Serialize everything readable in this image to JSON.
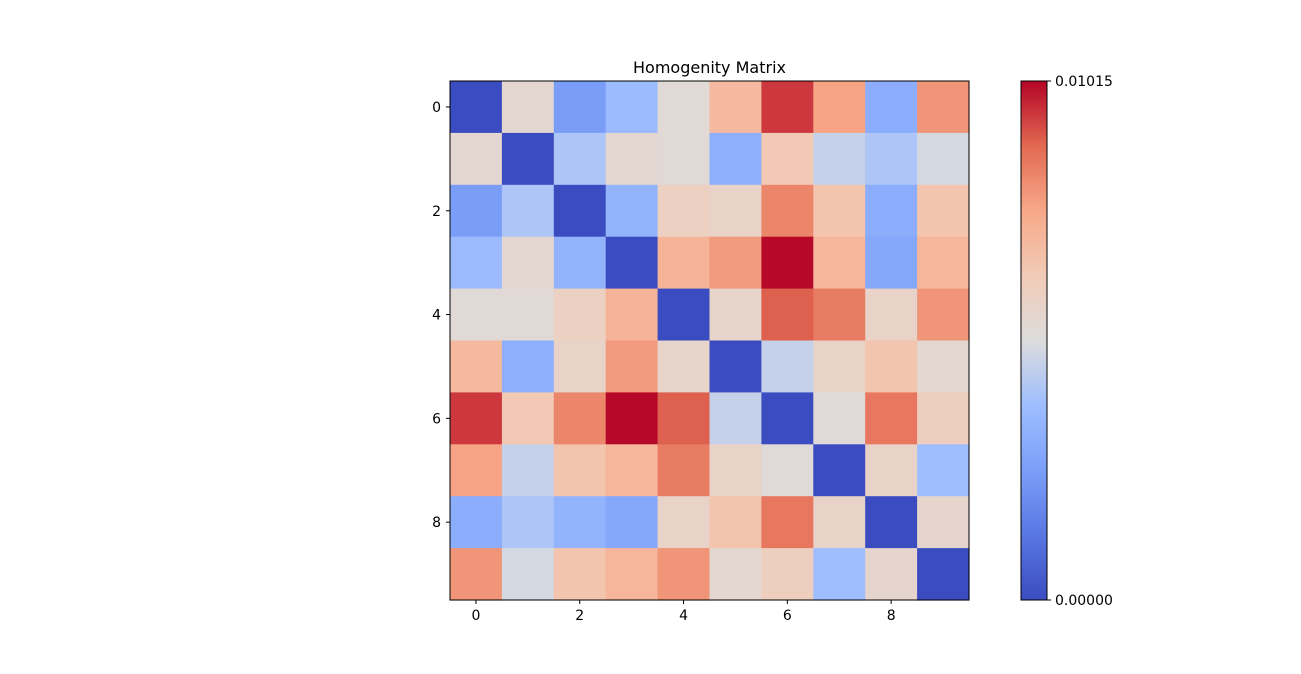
{
  "chart_data": {
    "type": "heatmap",
    "title": "Homogenity Matrix",
    "rows": 10,
    "cols": 10,
    "x_ticks": [
      "0",
      "2",
      "4",
      "6",
      "8"
    ],
    "y_ticks": [
      "0",
      "2",
      "4",
      "6",
      "8"
    ],
    "colormap": "coolwarm",
    "colorbar": {
      "min": 0.0,
      "max": 0.01015,
      "min_label": "0.00000",
      "max_label": "0.01015"
    },
    "values": [
      [
        0.0,
        0.0055,
        0.0025,
        0.0037,
        0.0053,
        0.007,
        0.0095,
        0.0077,
        0.0031,
        0.008
      ],
      [
        0.0055,
        0.0,
        0.0041,
        0.0055,
        0.0053,
        0.0032,
        0.0064,
        0.0046,
        0.0041,
        0.0049
      ],
      [
        0.0025,
        0.0041,
        0.0,
        0.0034,
        0.006,
        0.0058,
        0.0083,
        0.0066,
        0.0031,
        0.0066
      ],
      [
        0.0037,
        0.0055,
        0.0034,
        0.0,
        0.0072,
        0.0079,
        0.0101,
        0.0071,
        0.0029,
        0.0071
      ],
      [
        0.0053,
        0.0053,
        0.006,
        0.0072,
        0.0,
        0.0057,
        0.009,
        0.0085,
        0.0058,
        0.008
      ],
      [
        0.007,
        0.0032,
        0.0058,
        0.0079,
        0.0057,
        0.0,
        0.0046,
        0.0058,
        0.0066,
        0.0055
      ],
      [
        0.0095,
        0.0064,
        0.0083,
        0.0101,
        0.009,
        0.0046,
        0.0,
        0.0052,
        0.0086,
        0.0061
      ],
      [
        0.0077,
        0.0046,
        0.0066,
        0.0071,
        0.0085,
        0.0058,
        0.0052,
        0.0,
        0.0058,
        0.0038
      ],
      [
        0.0031,
        0.0041,
        0.0034,
        0.0029,
        0.0058,
        0.0066,
        0.0086,
        0.0058,
        0.0,
        0.0056
      ],
      [
        0.008,
        0.0049,
        0.0066,
        0.0071,
        0.008,
        0.0055,
        0.0061,
        0.0038,
        0.0056,
        0.0
      ]
    ]
  }
}
